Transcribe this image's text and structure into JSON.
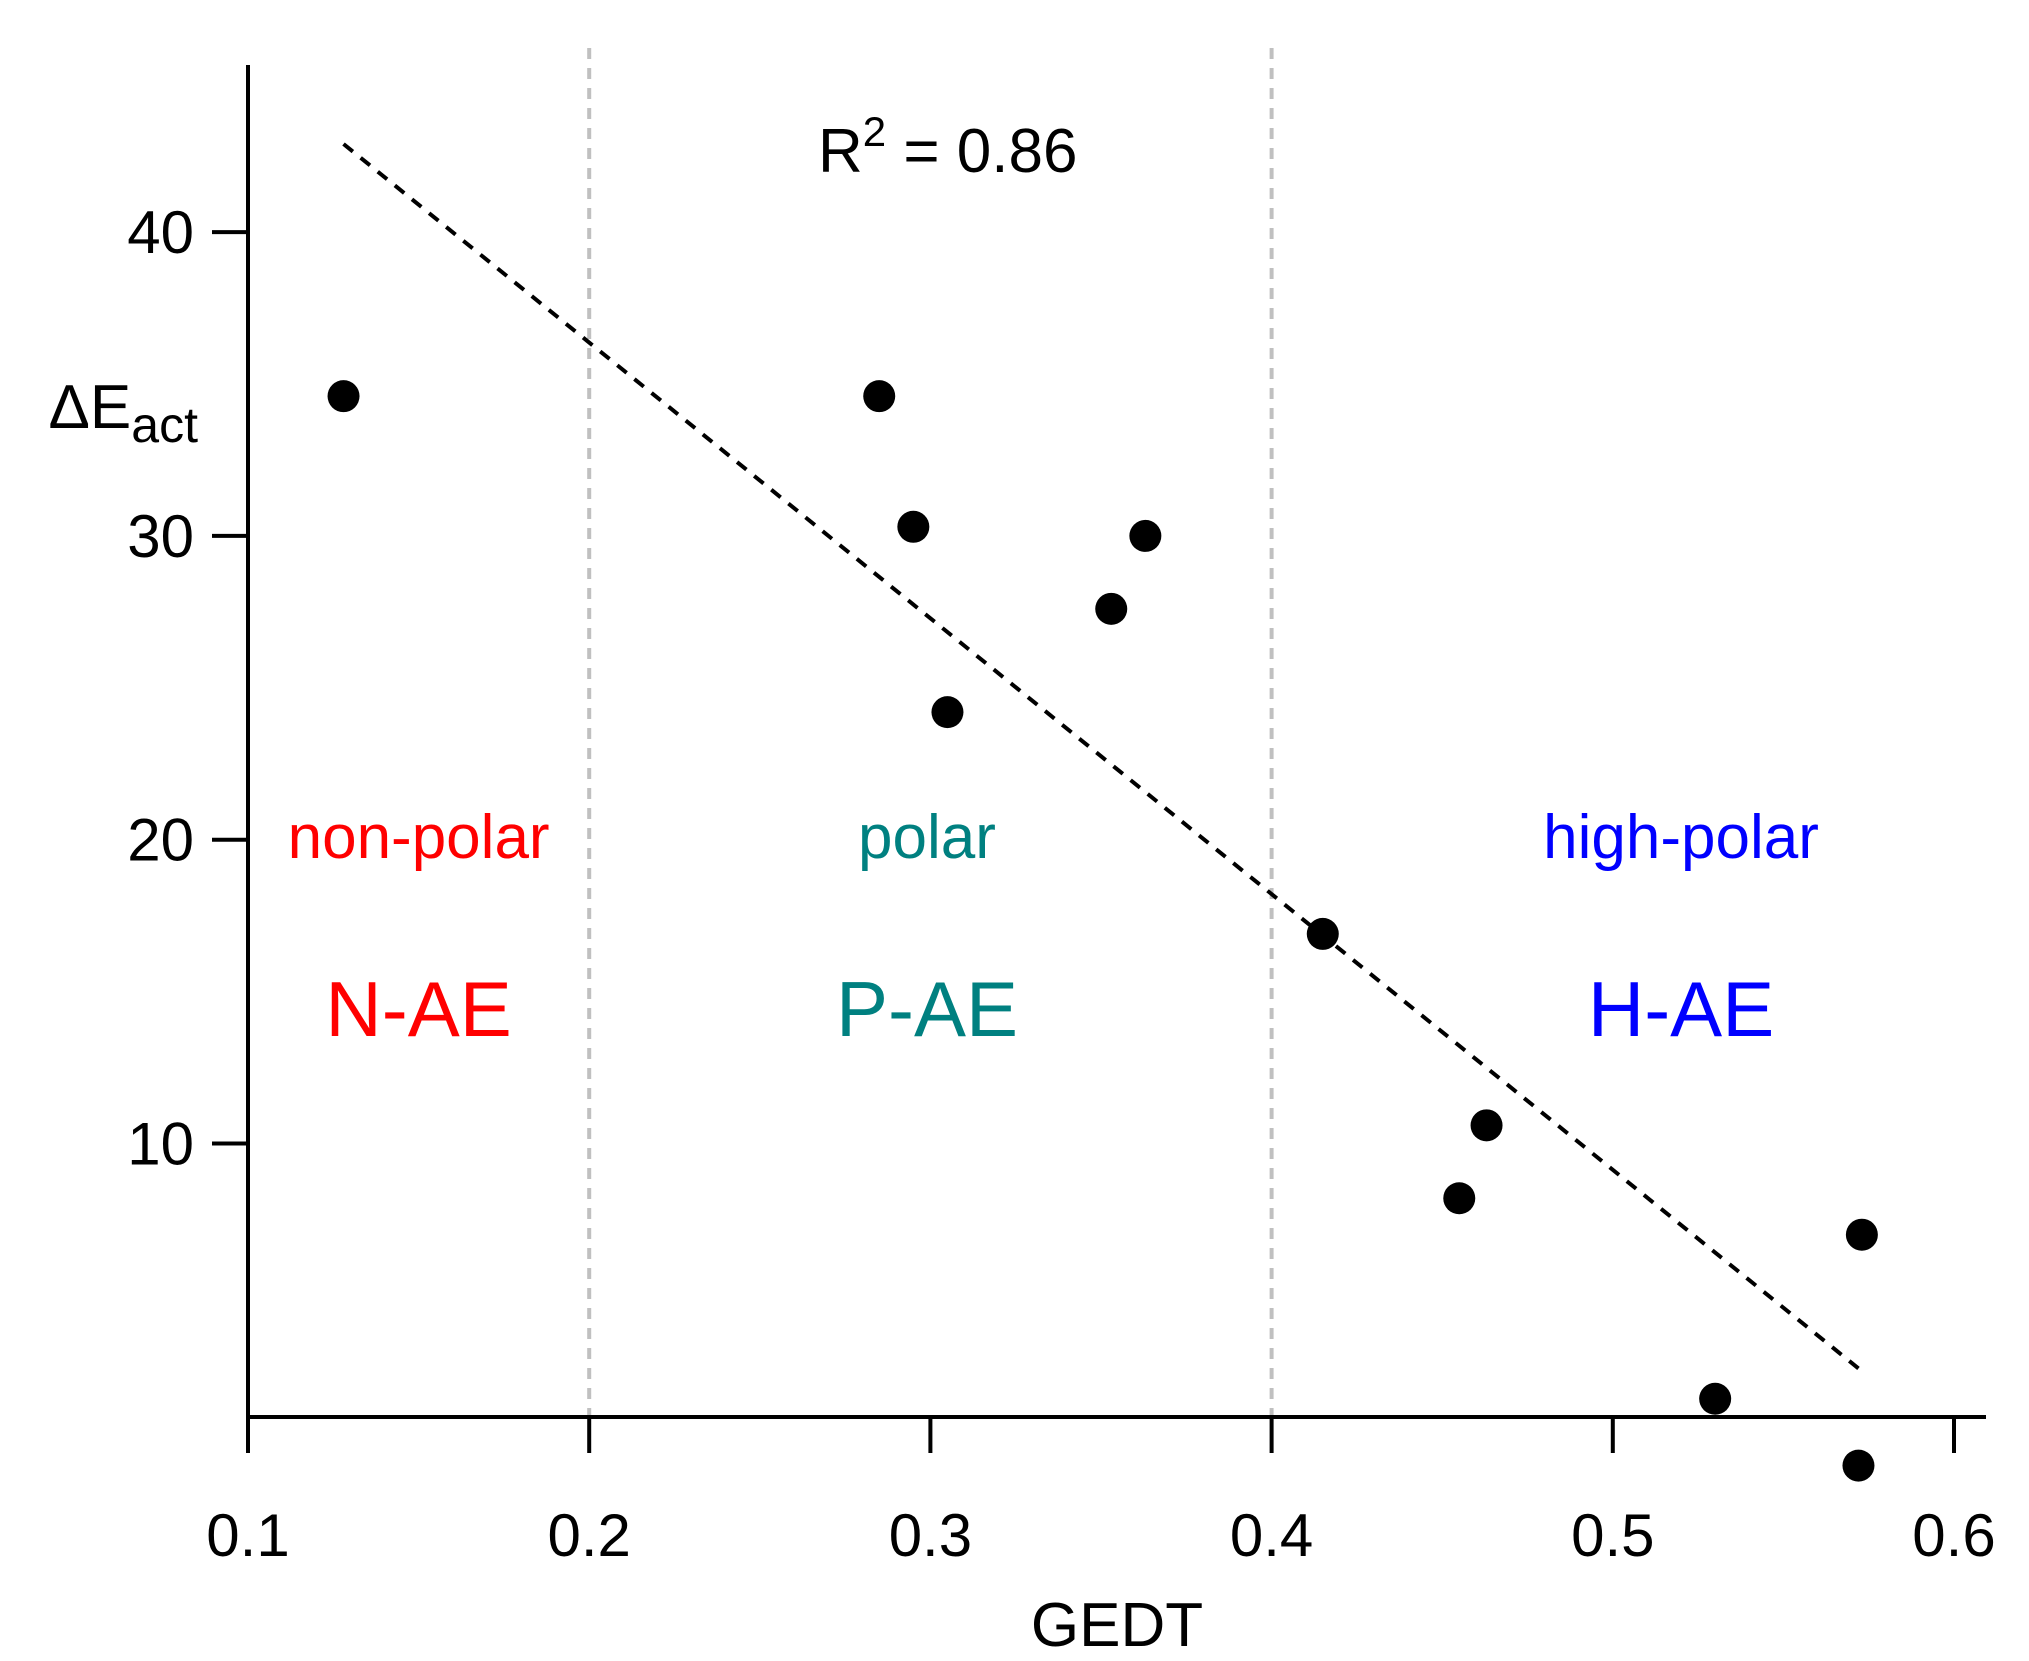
{
  "chart_data": {
    "type": "scatter",
    "xlabel": "GEDT",
    "ylabel": {
      "main": "ΔE",
      "subscript": "act"
    },
    "xlim": [
      0.1,
      0.6
    ],
    "ylim": [
      1.0,
      45.5
    ],
    "xticks": [
      0.1,
      0.2,
      0.3,
      0.4,
      0.5,
      0.6
    ],
    "xtick_labels": [
      "0.1",
      "0.2",
      "0.3",
      "0.4",
      "0.5",
      "0.6"
    ],
    "yticks": [
      10,
      20,
      30,
      40
    ],
    "ytick_labels": [
      "10",
      "20",
      "30",
      "40"
    ],
    "points": [
      {
        "x": 0.128,
        "y": 34.6
      },
      {
        "x": 0.285,
        "y": 34.6
      },
      {
        "x": 0.295,
        "y": 30.3
      },
      {
        "x": 0.305,
        "y": 24.2
      },
      {
        "x": 0.353,
        "y": 27.6
      },
      {
        "x": 0.363,
        "y": 30.0
      },
      {
        "x": 0.415,
        "y": 16.9
      },
      {
        "x": 0.455,
        "y": 8.2
      },
      {
        "x": 0.463,
        "y": 10.6
      },
      {
        "x": 0.53,
        "y": 1.6
      },
      {
        "x": 0.573,
        "y": 7.0
      },
      {
        "x": 0.572,
        "y": -0.6
      }
    ],
    "fit_line": {
      "x": [
        0.128,
        0.572
      ],
      "y": [
        42.9,
        2.6
      ],
      "style": "dashed"
    },
    "r_squared": {
      "label": "R",
      "superscript": "2",
      "value": " = 0.86"
    },
    "region_boundaries": [
      0.2,
      0.4
    ],
    "regions": [
      {
        "label": "non-polar",
        "name": "N-AE",
        "color": "#ff0000",
        "center_x": 0.15
      },
      {
        "label": "polar",
        "name": "P-AE",
        "color": "#008080",
        "center_x": 0.299
      },
      {
        "label": "high-polar",
        "name": "H-AE",
        "color": "#0000ff",
        "center_x": 0.52
      }
    ],
    "grid": false,
    "colors": {
      "points": "#000000",
      "boundary": "#c0c0c0",
      "fit": "#000000"
    }
  }
}
